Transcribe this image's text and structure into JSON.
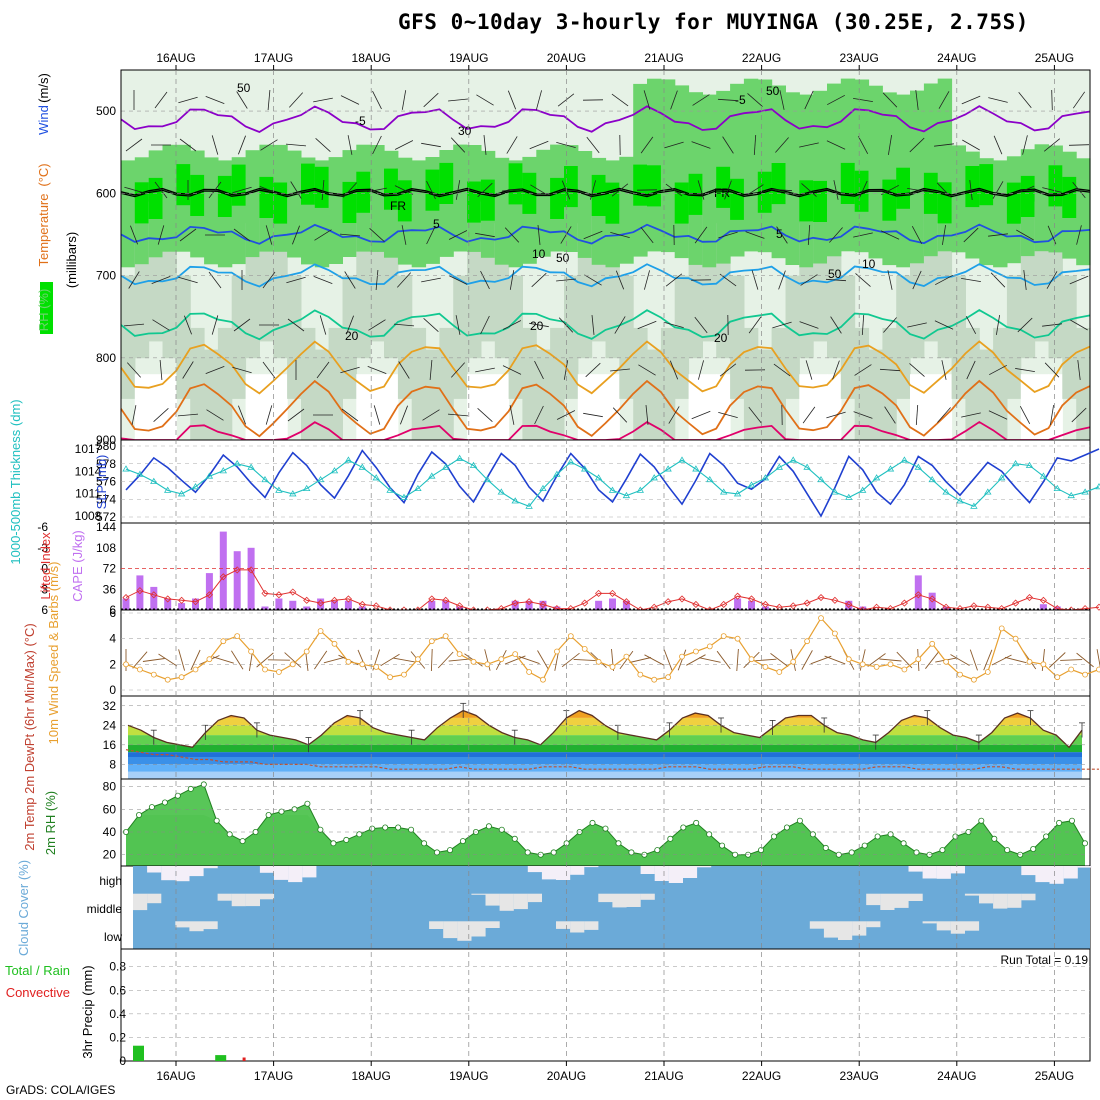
{
  "title": "GFS 0~10day 3-hourly for MUYINGA (30.25E, 2.75S)",
  "credit": "GrADS: COLA/IGES",
  "colors": {
    "rh_light": "#e6f2e6",
    "rh_mid": "#c5d9c5",
    "rh_green": "#6cd46c",
    "rh_bright": "#00e000",
    "temp_neg": "#8b00c8",
    "temp_5": "#2050e0",
    "temp_10": "#1ea0e8",
    "temp_15": "#10c890",
    "temp_20": "#e8a020",
    "temp_25": "#e07018",
    "temp_30": "#e0006a",
    "freezing": "#000000",
    "slp": "#2040d0",
    "thickness": "#20c0c0",
    "cape": "#c070f0",
    "lifted": "#e03030",
    "wind": "#e8a030",
    "barb": "#8b5a2b",
    "rh2m": "#40c040",
    "cloud": "#6baad8",
    "cloud_bg": "#e6e6e6",
    "precip_total": "#20c020",
    "precip_conv": "#e02020"
  },
  "chart_data": [
    {
      "panel": "upper_air",
      "type": "heatmap",
      "ylabel_parts": [
        "RH (%)",
        "Temperature",
        " (°C)",
        "Wind",
        " (m/s)",
        "(millibars)"
      ],
      "y_ticks": [
        "500",
        "600",
        "700",
        "800",
        "900"
      ],
      "ylim": [
        450,
        900
      ],
      "contour_labels": [
        "-5",
        "-5",
        "5",
        "5",
        "10",
        "10",
        "20",
        "20",
        "20",
        "FR",
        "FR",
        "50",
        "30",
        "50",
        "50",
        "50"
      ],
      "temperature_levels_hpa": {
        "-5": 510,
        "0 (FR)": 600,
        "5": 650,
        "10": 700,
        "15": 760,
        "20": 810,
        "25": 860,
        "30": 900
      }
    },
    {
      "panel": "slp_thickness",
      "type": "line",
      "ylabel_left": "1000-500mb Thickness (dm)",
      "ylabel_right": "SLP (mb)",
      "left_ticks": [
        "580",
        "578",
        "576",
        "574",
        "572"
      ],
      "right_ticks": [
        "1017",
        "1014",
        "1011",
        "1008"
      ],
      "series": [
        {
          "name": "SLP (mb)",
          "axis": "right",
          "values": [
            1011.5,
            1013.5,
            1015.8,
            1014.5,
            1012.8,
            1011.2,
            1013.5,
            1016.2,
            1014.6,
            1012.4,
            1010.5,
            1013.8,
            1016.5,
            1014.8,
            1012.2,
            1010.4,
            1013.4,
            1016.8,
            1014.5,
            1011.8,
            1009.8,
            1013.6,
            1016.6,
            1015.0,
            1012.0,
            1009.9,
            1013.2,
            1016.4,
            1014.8,
            1011.9,
            1010.0,
            1013.4,
            1016.4,
            1014.4,
            1011.5,
            1009.9,
            1013.0,
            1016.3,
            1014.6,
            1012.0,
            1009.6,
            1012.8,
            1016.4,
            1014.8,
            1012.4,
            1011.6,
            1013.0,
            1016.0,
            1014.0,
            1011.0,
            1008.0,
            1011.8,
            1016.0,
            1014.2,
            1011.2,
            1009.6,
            1012.2,
            1016.0,
            1014.8,
            1012.6,
            1010.8,
            1013.0,
            1015.2,
            1014.0,
            1011.8,
            1009.8,
            1012.6,
            1015.8,
            1015.4,
            1016.2,
            1017.0
          ]
        },
        {
          "name": "1000-500mb Thickness (dm)",
          "axis": "left",
          "values": [
            577.4,
            576.8,
            576.0,
            575.0,
            574.6,
            575.4,
            576.6,
            577.2,
            578.0,
            577.6,
            576.2,
            575.0,
            574.6,
            575.2,
            576.2,
            577.2,
            578.4,
            577.6,
            576.4,
            575.0,
            574.2,
            575.2,
            576.6,
            577.6,
            578.6,
            577.8,
            576.2,
            574.8,
            573.8,
            573.2,
            575.2,
            576.8,
            578.2,
            577.4,
            576.4,
            575.0,
            574.4,
            575.0,
            576.4,
            577.4,
            578.4,
            577.4,
            576.2,
            574.8,
            574.6,
            575.6,
            576.4,
            577.6,
            578.4,
            577.6,
            576.2,
            574.8,
            574.2,
            575.0,
            576.4,
            577.4,
            578.4,
            577.6,
            576.2,
            574.8,
            573.8,
            573.2,
            574.8,
            576.4,
            578.0,
            577.8,
            576.6,
            575.2,
            574.4,
            574.8,
            575.4
          ]
        }
      ]
    },
    {
      "panel": "cape_li",
      "type": "bar",
      "ylabel_left": "Lifted Index",
      "ylabel_right": "CAPE (J/kg)",
      "left_ticks": [
        "-6",
        "-3",
        "0",
        "3",
        "6"
      ],
      "right_ticks": [
        "144",
        "108",
        "72",
        "36",
        "6"
      ],
      "series": [
        {
          "name": "CAPE (J/kg)",
          "values": [
            20,
            60,
            40,
            20,
            12,
            20,
            64,
            136,
            102,
            108,
            6,
            20,
            16,
            6,
            20,
            16,
            16,
            6,
            0,
            0,
            0,
            0,
            16,
            16,
            6,
            0,
            0,
            0,
            16,
            16,
            16,
            6,
            0,
            0,
            16,
            20,
            16,
            0,
            0,
            0,
            0,
            0,
            0,
            0,
            20,
            16,
            6,
            0,
            0,
            0,
            0,
            0,
            16,
            6,
            0,
            0,
            0,
            60,
            30,
            6,
            0,
            0,
            0,
            0,
            0,
            0,
            10,
            6,
            0,
            0,
            0
          ]
        },
        {
          "name": "Lifted Index",
          "values": [
            4.2,
            3.2,
            3.8,
            4.4,
            4.6,
            4.8,
            3.8,
            1.2,
            0.2,
            0.2,
            3.6,
            3.8,
            3.4,
            4.6,
            5.0,
            4.6,
            4.4,
            5.2,
            5.4,
            6.0,
            6.0,
            6.0,
            4.4,
            4.6,
            5.4,
            6.0,
            6.0,
            5.8,
            5.0,
            4.8,
            5.2,
            5.8,
            5.8,
            5.0,
            3.6,
            3.6,
            4.8,
            6.0,
            5.6,
            4.8,
            4.4,
            5.2,
            6.0,
            5.2,
            4.0,
            4.4,
            5.2,
            5.6,
            5.4,
            5.0,
            4.2,
            4.6,
            5.2,
            6.0,
            5.6,
            5.8,
            5.0,
            3.8,
            4.4,
            5.6,
            5.8,
            5.4,
            5.6,
            5.8,
            5.0,
            4.2,
            4.6,
            5.8,
            6.0,
            5.8,
            5.6
          ]
        }
      ]
    },
    {
      "panel": "wind10m",
      "type": "line",
      "ylabel": "10m Wind Speed & Barbs (m/s)",
      "y_ticks": [
        "6",
        "4",
        "2",
        "0"
      ],
      "ylim": [
        0,
        6
      ],
      "series": [
        {
          "name": "10m Wind Speed",
          "values": [
            2.0,
            1.6,
            1.2,
            0.8,
            1.0,
            1.6,
            2.4,
            3.8,
            4.2,
            3.0,
            1.6,
            1.4,
            2.0,
            3.0,
            4.6,
            3.6,
            2.2,
            2.0,
            1.8,
            1.0,
            1.2,
            2.4,
            3.8,
            4.2,
            2.8,
            2.2,
            2.0,
            2.4,
            2.8,
            1.4,
            0.8,
            3.0,
            4.2,
            3.2,
            2.2,
            1.8,
            2.6,
            1.2,
            0.8,
            1.0,
            2.6,
            3.0,
            3.4,
            4.2,
            4.0,
            2.4,
            1.8,
            1.4,
            2.2,
            3.8,
            5.6,
            4.4,
            2.4,
            2.0,
            1.8,
            2.0,
            1.6,
            2.4,
            3.6,
            2.2,
            1.2,
            0.8,
            1.4,
            4.8,
            4.0,
            2.2,
            2.0,
            1.0,
            1.6,
            1.2,
            1.6
          ]
        }
      ]
    },
    {
      "panel": "temp2m",
      "type": "area",
      "ylabel": "2m Temp 2m DewPt (6hr Min/Max) (°C)",
      "y_ticks": [
        "32",
        "24",
        "16",
        "8"
      ],
      "ylim": [
        2,
        36
      ],
      "series": [
        {
          "name": "2m Temp",
          "values": [
            24,
            22,
            19,
            17,
            16,
            15,
            21,
            26,
            28,
            27,
            22,
            20,
            19,
            18,
            16,
            20,
            25,
            28,
            27,
            23,
            21,
            20,
            19,
            18,
            23,
            27,
            30,
            28,
            24,
            21,
            19,
            18,
            16,
            21,
            27,
            30,
            28,
            24,
            21,
            20,
            19,
            18,
            22,
            27,
            29,
            28,
            24,
            21,
            20,
            19,
            23,
            27,
            28,
            28,
            24,
            21,
            20,
            18,
            17,
            21,
            26,
            28,
            27,
            23,
            20,
            19,
            17,
            21,
            27,
            29,
            27,
            22,
            20,
            15,
            22
          ]
        },
        {
          "name": "2m DewPt",
          "values": [
            14,
            13,
            12,
            12,
            11,
            10,
            10,
            9,
            9,
            9,
            8,
            8,
            8,
            8,
            7,
            7,
            7,
            7,
            7,
            6,
            6,
            6,
            6,
            6,
            7,
            6,
            6,
            6,
            6,
            6,
            7,
            7,
            7,
            6,
            6,
            6,
            6,
            6,
            6,
            7,
            7,
            7,
            6,
            6,
            6,
            6,
            7,
            7,
            7,
            6,
            6,
            6,
            6,
            6,
            7,
            7,
            7,
            6,
            6,
            6,
            6,
            6,
            7,
            7,
            6,
            6,
            6,
            6,
            6,
            6,
            6
          ]
        }
      ]
    },
    {
      "panel": "rh2m",
      "type": "area",
      "ylabel": "2m RH (%)",
      "y_ticks": [
        "80",
        "60",
        "40",
        "20"
      ],
      "ylim": [
        10,
        85
      ],
      "series": [
        {
          "name": "2m RH",
          "values": [
            40,
            55,
            62,
            66,
            72,
            78,
            82,
            50,
            38,
            32,
            40,
            55,
            58,
            60,
            65,
            42,
            30,
            33,
            38,
            43,
            44,
            44,
            42,
            30,
            22,
            24,
            32,
            40,
            45,
            42,
            34,
            22,
            20,
            22,
            30,
            40,
            48,
            43,
            30,
            22,
            20,
            24,
            34,
            44,
            48,
            38,
            28,
            20,
            20,
            24,
            36,
            44,
            50,
            38,
            26,
            20,
            22,
            28,
            36,
            38,
            30,
            22,
            20,
            24,
            36,
            40,
            50,
            34,
            24,
            20,
            25,
            36,
            48,
            50,
            30
          ]
        }
      ]
    },
    {
      "panel": "cloud",
      "type": "heatmap",
      "ylabel": "Cloud Cover (%)",
      "row_labels": [
        "high",
        "middle",
        "low"
      ]
    },
    {
      "panel": "precip",
      "type": "bar",
      "ylabel": "3hr Precip (mm)",
      "legend_left": [
        "Total / Rain",
        "Convective"
      ],
      "y_ticks": [
        "0.8",
        "0.6",
        "0.4",
        "0.2",
        "0"
      ],
      "ylim": [
        0,
        0.95
      ],
      "run_total": "Run Total = 0.19",
      "series": [
        {
          "name": "Total / Rain",
          "values": [
            0.13,
            0,
            0,
            0,
            0,
            0,
            0.05,
            0,
            0,
            0,
            0
          ]
        },
        {
          "name": "Convective",
          "values": [
            0,
            0,
            0,
            0,
            0,
            0,
            0,
            0,
            0.03,
            0,
            0
          ]
        }
      ]
    }
  ],
  "time_axis": {
    "top_labels": [
      "16AUG",
      "17AUG",
      "18AUG",
      "19AUG",
      "20AUG",
      "21AUG",
      "22AUG",
      "23AUG",
      "24AUG",
      "25AUG"
    ],
    "bottom_labels": [
      "16AUG",
      "17AUG",
      "18AUG",
      "19AUG",
      "20AUG",
      "21AUG",
      "22AUG",
      "23AUG",
      "24AUG",
      "25AUG"
    ]
  }
}
